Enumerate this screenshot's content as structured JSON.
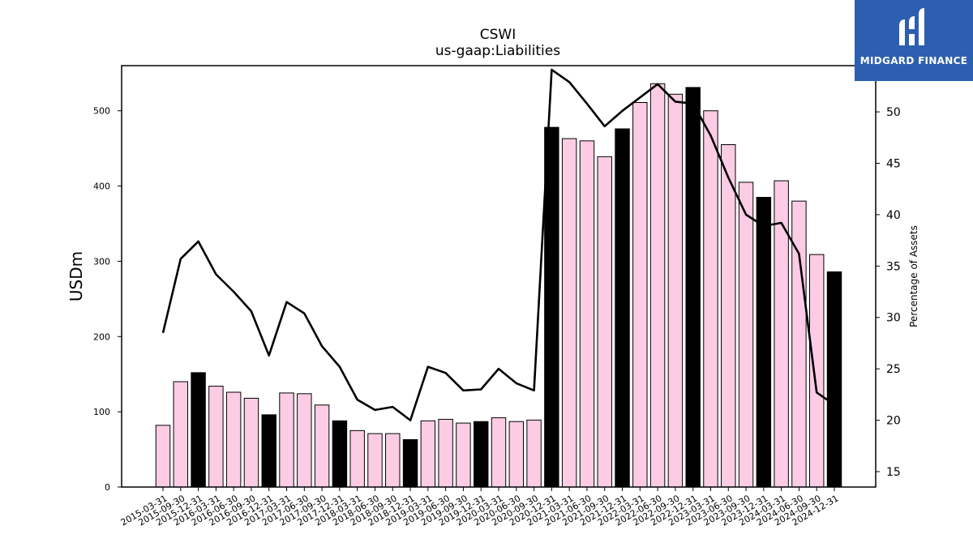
{
  "brand": {
    "name": "MIDGARD FINANCE",
    "bg_color": "#2d5fb0"
  },
  "chart_data": {
    "type": "bar",
    "title": "CSWI",
    "subtitle": "us-gaap:Liabilities",
    "ylabel": "USDm",
    "y2label": "Percentage of Assets",
    "ylim": [
      0,
      560
    ],
    "y2lim": [
      13.5,
      54.5
    ],
    "yticks": [
      0,
      100,
      200,
      300,
      400,
      500
    ],
    "y2ticks": [
      15,
      20,
      25,
      30,
      35,
      40,
      45,
      50
    ],
    "categories": [
      "2015-03-31",
      "2015-09-30",
      "2015-12-31",
      "2016-03-31",
      "2016-06-30",
      "2016-09-30",
      "2016-12-31",
      "2017-03-31",
      "2017-06-30",
      "2017-09-30",
      "2017-12-31",
      "2018-03-31",
      "2018-06-30",
      "2018-09-30",
      "2018-12-31",
      "2019-03-31",
      "2019-06-30",
      "2019-09-30",
      "2019-12-31",
      "2020-03-31",
      "2020-06-30",
      "2020-09-30",
      "2020-12-31",
      "2021-03-31",
      "2021-06-30",
      "2021-09-30",
      "2021-12-31",
      "2022-03-31",
      "2022-06-30",
      "2022-09-30",
      "2022-12-31",
      "2023-03-31",
      "2023-06-30",
      "2023-09-30",
      "2023-12-31",
      "2024-03-31",
      "2024-06-30",
      "2024-09-30",
      "2024-12-31"
    ],
    "series": [
      {
        "kind": "bar",
        "values": [
          82,
          140,
          152,
          134,
          126,
          118,
          96,
          125,
          124,
          109,
          88,
          75,
          71,
          71,
          63,
          88,
          90,
          85,
          87,
          92,
          87,
          89,
          478,
          463,
          460,
          439,
          476,
          511,
          536,
          522,
          531,
          500,
          455,
          405,
          385,
          407,
          380,
          309,
          286
        ],
        "highlight": [
          false,
          false,
          true,
          false,
          false,
          false,
          true,
          false,
          false,
          false,
          true,
          false,
          false,
          false,
          true,
          false,
          false,
          false,
          true,
          false,
          false,
          false,
          true,
          false,
          false,
          false,
          true,
          false,
          false,
          false,
          true,
          false,
          false,
          false,
          true,
          false,
          false,
          false,
          true
        ],
        "color": "#fccce4",
        "highlight_color": "#000000"
      },
      {
        "kind": "line",
        "axis": "right",
        "values": [
          28.5,
          35.7,
          37.4,
          34.2,
          32.5,
          30.6,
          26.3,
          31.5,
          30.4,
          27.2,
          25.2,
          22.0,
          21.0,
          21.3,
          20.0,
          25.2,
          24.6,
          22.9,
          23.0,
          25.0,
          23.6,
          22.9,
          54.1,
          52.9,
          50.8,
          48.6,
          50.1,
          51.4,
          52.7,
          51.0,
          50.8,
          47.7,
          43.6,
          40.0,
          38.9,
          39.2,
          36.2,
          22.7,
          21.5
        ],
        "color": "#000000"
      }
    ]
  }
}
